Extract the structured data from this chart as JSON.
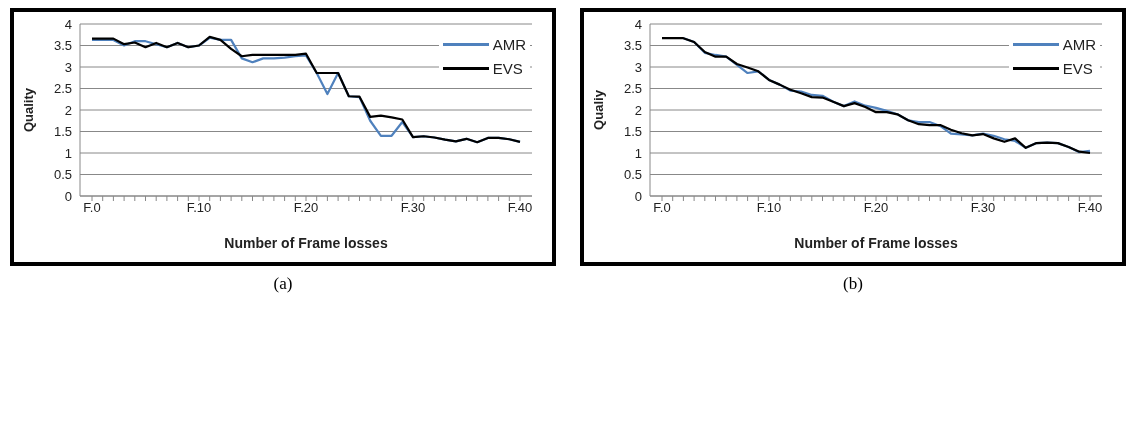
{
  "chart_data": [
    {
      "type": "line",
      "xlabel": "Number of Frame losses",
      "ylabel": "Quality",
      "annotations": [
        "(a)"
      ],
      "categories": [
        "F.0",
        null,
        null,
        null,
        null,
        null,
        null,
        null,
        null,
        null,
        "F.10",
        null,
        null,
        null,
        null,
        null,
        null,
        null,
        null,
        null,
        "F.20",
        null,
        null,
        null,
        null,
        null,
        null,
        null,
        null,
        null,
        "F.30",
        null,
        null,
        null,
        null,
        null,
        null,
        null,
        null,
        null,
        "F.40"
      ],
      "series": [
        {
          "name": "AMR",
          "color": "#4f81bd",
          "values": [
            3.63,
            3.63,
            3.63,
            3.5,
            3.6,
            3.6,
            3.53,
            3.46,
            3.56,
            3.46,
            3.5,
            3.68,
            3.63,
            3.63,
            3.2,
            3.11,
            3.2,
            3.2,
            3.22,
            3.25,
            3.27,
            2.86,
            2.37,
            2.86,
            2.32,
            2.3,
            1.75,
            1.4,
            1.4,
            1.72,
            1.37,
            1.39,
            1.36,
            1.31,
            1.27,
            1.33,
            1.25,
            1.35,
            1.35,
            1.32,
            1.26
          ]
        },
        {
          "name": "EVS",
          "color": "#000000",
          "values": [
            3.66,
            3.66,
            3.66,
            3.53,
            3.57,
            3.46,
            3.56,
            3.46,
            3.56,
            3.46,
            3.5,
            3.7,
            3.63,
            3.42,
            3.25,
            3.28,
            3.28,
            3.28,
            3.28,
            3.28,
            3.31,
            2.86,
            2.86,
            2.86,
            2.32,
            2.31,
            1.84,
            1.87,
            1.83,
            1.78,
            1.37,
            1.39,
            1.36,
            1.31,
            1.27,
            1.33,
            1.25,
            1.35,
            1.35,
            1.32,
            1.26
          ]
        }
      ],
      "ylim": [
        0,
        4
      ],
      "yticks": [
        0,
        0.5,
        1,
        1.5,
        2,
        2.5,
        3,
        3.5,
        4
      ],
      "grid": "y",
      "legend": "top right",
      "marker": "none",
      "line_style": "solid"
    },
    {
      "type": "line",
      "xlabel": "Number of Frame losses",
      "ylabel": "Qualiy",
      "annotations": [
        "(b)"
      ],
      "categories": [
        "F.0",
        null,
        null,
        null,
        null,
        null,
        null,
        null,
        null,
        null,
        "F.10",
        null,
        null,
        null,
        null,
        null,
        null,
        null,
        null,
        null,
        "F.20",
        null,
        null,
        null,
        null,
        null,
        null,
        null,
        null,
        null,
        "F.30",
        null,
        null,
        null,
        null,
        null,
        null,
        null,
        null,
        null,
        "F.40"
      ],
      "series": [
        {
          "name": "AMR",
          "color": "#4f81bd",
          "values": [
            null,
            null,
            3.67,
            3.58,
            3.33,
            3.28,
            3.24,
            3.05,
            2.86,
            2.9,
            2.7,
            2.59,
            2.45,
            2.43,
            2.35,
            2.33,
            2.19,
            2.09,
            2.2,
            2.1,
            2.05,
            1.98,
            1.9,
            1.76,
            1.72,
            1.72,
            1.63,
            1.45,
            1.43,
            1.41,
            1.45,
            1.4,
            1.32,
            1.28,
            1.12,
            1.23,
            1.24,
            1.23,
            1.14,
            1.02,
            1.05
          ]
        },
        {
          "name": "EVS",
          "color": "#000000",
          "values": [
            3.67,
            3.67,
            3.67,
            3.58,
            3.35,
            3.24,
            3.24,
            3.07,
            2.99,
            2.9,
            2.7,
            2.59,
            2.47,
            2.39,
            2.3,
            2.29,
            2.19,
            2.09,
            2.16,
            2.07,
            1.95,
            1.95,
            1.9,
            1.76,
            1.67,
            1.65,
            1.65,
            1.54,
            1.46,
            1.41,
            1.44,
            1.34,
            1.26,
            1.34,
            1.12,
            1.23,
            1.24,
            1.23,
            1.14,
            1.03,
            1.0
          ]
        }
      ],
      "ylim": [
        0,
        4
      ],
      "yticks": [
        0,
        0.5,
        1,
        1.5,
        2,
        2.5,
        3,
        3.5,
        4
      ],
      "grid": "y",
      "legend": "top right",
      "marker": "none",
      "line_style": "solid"
    }
  ]
}
